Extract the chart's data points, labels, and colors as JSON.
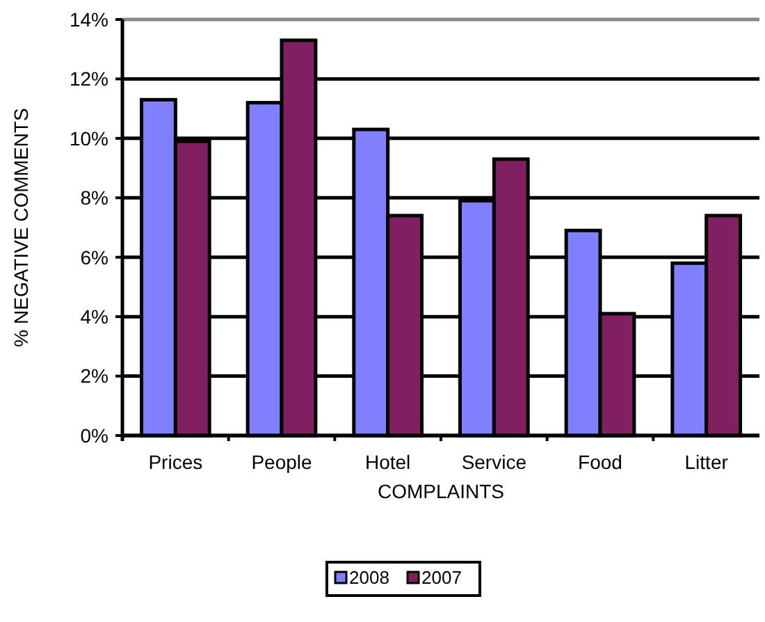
{
  "chart_data": {
    "type": "bar",
    "xlabel": "COMPLAINTS",
    "ylabel": "% NEGATIVE COMMENTS",
    "categories": [
      "Prices",
      "People",
      "Hotel",
      "Service",
      "Food",
      "Litter"
    ],
    "series": [
      {
        "name": "2008",
        "color": "#8080ff",
        "values": [
          11.3,
          11.2,
          10.3,
          7.9,
          6.9,
          5.8
        ]
      },
      {
        "name": "2007",
        "color": "#802060",
        "values": [
          9.9,
          13.3,
          7.4,
          9.3,
          4.1,
          7.4
        ]
      }
    ],
    "ylim": [
      0,
      14
    ],
    "yticks": [
      {
        "value": 0,
        "label": "0%"
      },
      {
        "value": 2,
        "label": "2%"
      },
      {
        "value": 4,
        "label": "4%"
      },
      {
        "value": 6,
        "label": "6%"
      },
      {
        "value": 8,
        "label": "8%"
      },
      {
        "value": 10,
        "label": "10%"
      },
      {
        "value": 12,
        "label": "12%"
      },
      {
        "value": 14,
        "label": "14%"
      }
    ],
    "grid": "y",
    "legend": "bottom"
  }
}
